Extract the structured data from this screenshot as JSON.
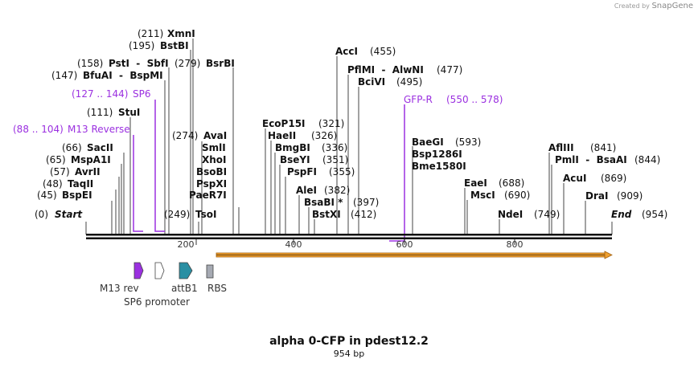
{
  "credit": {
    "prefix": "Created by",
    "brand": "SnapGene"
  },
  "title": "alpha 0-CFP in pdest12.2",
  "length_label": "954 bp",
  "sites": [
    {
      "num": "(0)",
      "name": "Start",
      "italic": true
    },
    {
      "num": "(45)",
      "name": "BspEI"
    },
    {
      "num": "(48)",
      "name": "TaqII"
    },
    {
      "num": "(57)",
      "name": "AvrII"
    },
    {
      "num": "(65)",
      "name": "MspA1I"
    },
    {
      "num": "(66)",
      "name": "SacII"
    },
    {
      "num": "(111)",
      "name": "StuI"
    },
    {
      "num": "(147)",
      "name": "BfuAI  -  BspMI"
    },
    {
      "num": "(158)",
      "name": "PstI  -  SbfI"
    },
    {
      "num": "(195)",
      "name": "BstBI"
    },
    {
      "num": "(211)",
      "name": "XmnI"
    },
    {
      "num": "(279)",
      "name": "BsrBI"
    },
    {
      "num": "(249)",
      "name": "TsoI"
    },
    {
      "num": "(274)",
      "name": "AvaI"
    },
    {
      "name": "SmlI"
    },
    {
      "name": "XhoI"
    },
    {
      "name": "BsoBI"
    },
    {
      "name": "PspXI"
    },
    {
      "name": "PaeR7I"
    },
    {
      "name": "EcoP15I",
      "num": "(321)"
    },
    {
      "name": "HaeII",
      "num": "(326)"
    },
    {
      "name": "BmgBI",
      "num": "(336)"
    },
    {
      "name": "BseYI",
      "num": "(351)"
    },
    {
      "name": "PspFI",
      "num": "(355)"
    },
    {
      "name": "AleI",
      "num": "(382)"
    },
    {
      "name": "BsaBI *",
      "num": "(397)"
    },
    {
      "name": "BstXI",
      "num": "(412)"
    },
    {
      "name": "AccI",
      "num": "(455)"
    },
    {
      "name": "PflMI  -  AlwNI",
      "num": "(477)"
    },
    {
      "name": "BciVI",
      "num": "(495)"
    },
    {
      "name": "BaeGI",
      "num": "(593)"
    },
    {
      "name": "Bsp1286I"
    },
    {
      "name": "Bme1580I"
    },
    {
      "name": "EaeI",
      "num": "(688)"
    },
    {
      "name": "MscI",
      "num": "(690)"
    },
    {
      "name": "NdeI",
      "num": "(749)"
    },
    {
      "name": "AflIII",
      "num": "(841)"
    },
    {
      "name": "PmlI  -  BsaAI",
      "num": "(844)"
    },
    {
      "name": "AcuI",
      "num": "(869)"
    },
    {
      "name": "DraI",
      "num": "(909)"
    },
    {
      "name": "End",
      "num": "(954)",
      "italic": true
    }
  ],
  "primers": [
    {
      "range": "(88 .. 104)",
      "name": "M13 Reverse"
    },
    {
      "range": "(127 .. 144)",
      "name": "SP6"
    },
    {
      "range": "(550 .. 578)",
      "name": "GFP-R"
    }
  ],
  "ruler": [
    "200",
    "400",
    "600",
    "800"
  ],
  "features": [
    {
      "name": "M13 rev",
      "color": "#9b30e0"
    },
    {
      "name": "SP6 promoter",
      "color": "#ffffff"
    },
    {
      "name": "attB1",
      "color": "#2a8fa3"
    },
    {
      "name": "RBS",
      "color": "#a6aab3"
    }
  ],
  "colors": {
    "primer": "#9b30e0",
    "orf": "#f0a030"
  }
}
